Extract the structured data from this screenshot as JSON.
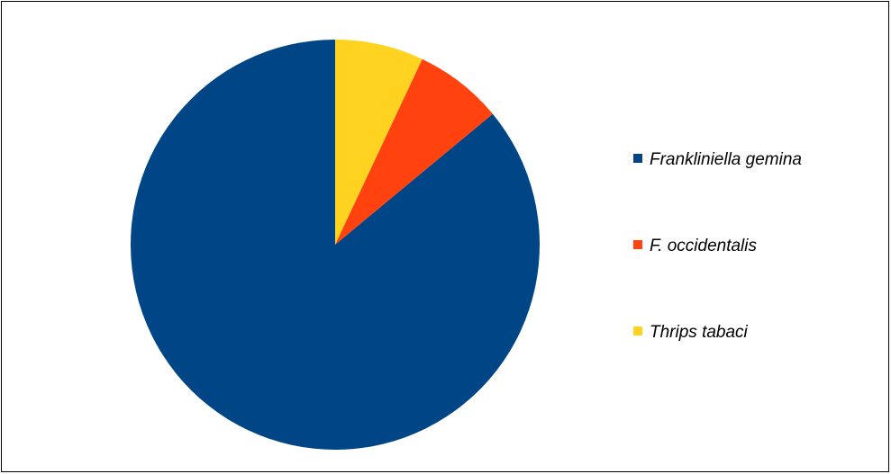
{
  "chart_data": {
    "type": "pie",
    "title": "",
    "series": [
      {
        "values": [
          86,
          7,
          7
        ]
      }
    ],
    "categories": [
      "Frankliniella gemina",
      "F. occidentalis",
      "Thrips tabaci"
    ],
    "colors": [
      "#004586",
      "#ff420e",
      "#ffd320"
    ],
    "start_angle": "12 o'clock",
    "direction": "counterclockwise",
    "legend_position": "right"
  }
}
